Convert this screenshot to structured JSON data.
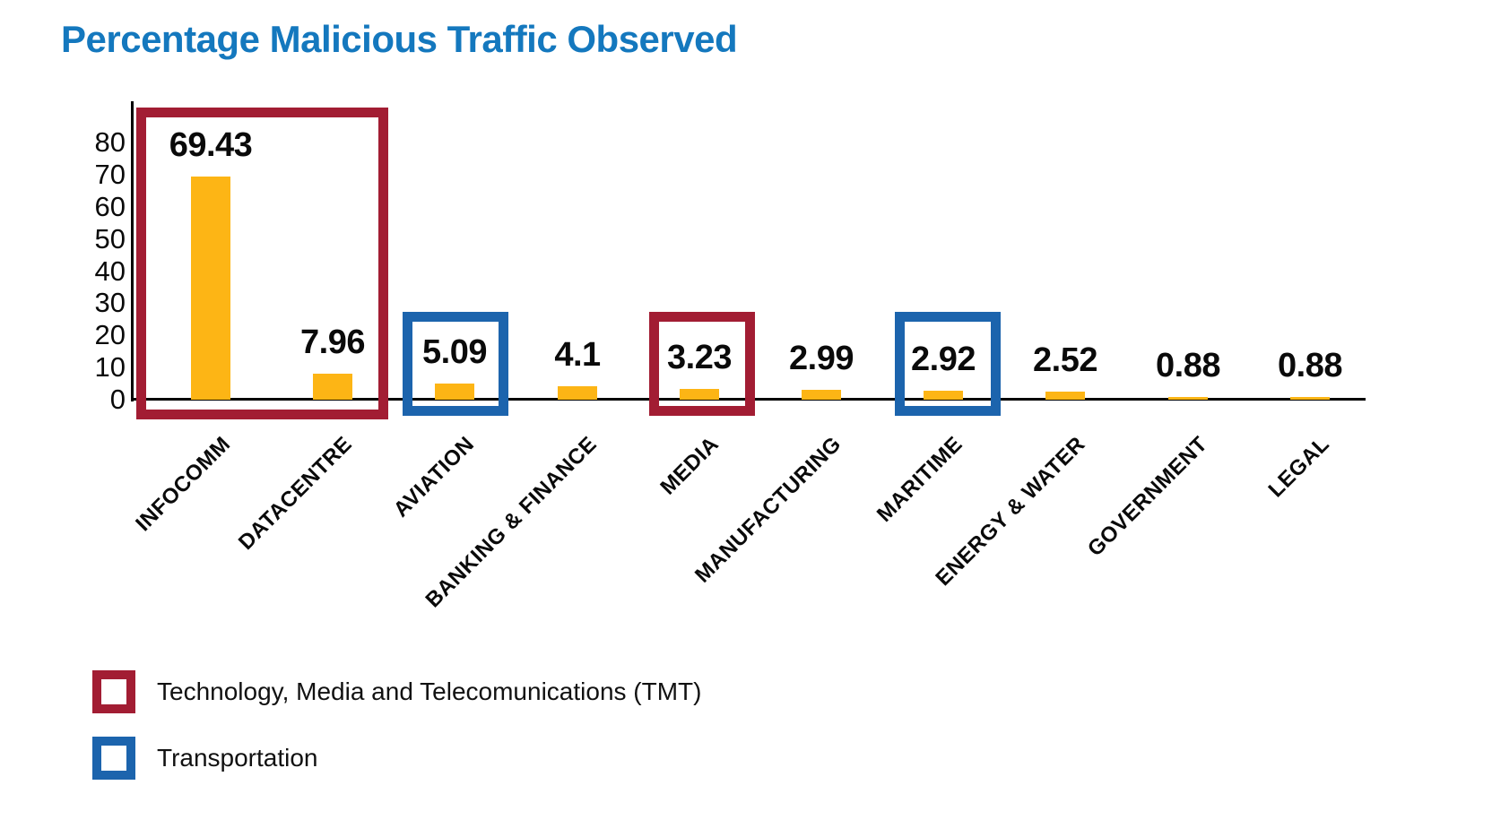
{
  "title": "Percentage Malicious Traffic Observed",
  "colors": {
    "title_blue": "#1478BE",
    "bar_orange": "#FDB515",
    "tmt_maroon": "#A21D33",
    "transportation_blue": "#1C64AD",
    "axis_black": "#000000"
  },
  "chart_data": {
    "type": "bar",
    "title": "Percentage Malicious Traffic Observed",
    "xlabel": "",
    "ylabel": "",
    "categories": [
      "INFOCOMM",
      "DATACENTRE",
      "AVIATION",
      "BANKING & FINANCE",
      "MEDIA",
      "MANUFACTURING",
      "MARITIME",
      "ENERGY & WATER",
      "GOVERNMENT",
      "LEGAL"
    ],
    "values": [
      69.43,
      7.96,
      5.09,
      4.1,
      3.23,
      2.99,
      2.92,
      2.52,
      0.88,
      0.88
    ],
    "value_labels": [
      "69.43",
      "7.96",
      "5.09",
      "4.1",
      "3.23",
      "2.99",
      "2.92",
      "2.52",
      "0.88",
      "0.88"
    ],
    "y_ticks": [
      80,
      70,
      60,
      50,
      40,
      30,
      20,
      10,
      0
    ],
    "ylim": [
      0,
      88
    ],
    "grid": false,
    "bar_color": "#FDB515",
    "highlights": [
      {
        "group": "Technology, Media and Telecomunications (TMT)",
        "color": "#A21D33",
        "categories": [
          "INFOCOMM",
          "DATACENTRE"
        ]
      },
      {
        "group": "Transportation",
        "color": "#1C64AD",
        "categories": [
          "AVIATION"
        ]
      },
      {
        "group": "Technology, Media and Telecomunications (TMT)",
        "color": "#A21D33",
        "categories": [
          "MEDIA"
        ]
      },
      {
        "group": "Transportation",
        "color": "#1C64AD",
        "categories": [
          "MARITIME"
        ]
      }
    ],
    "legend_position": "bottom-left",
    "legend": [
      {
        "label": "Technology, Media and Telecomunications (TMT)",
        "color": "#A21D33"
      },
      {
        "label": "Transportation",
        "color": "#1C64AD"
      }
    ]
  }
}
